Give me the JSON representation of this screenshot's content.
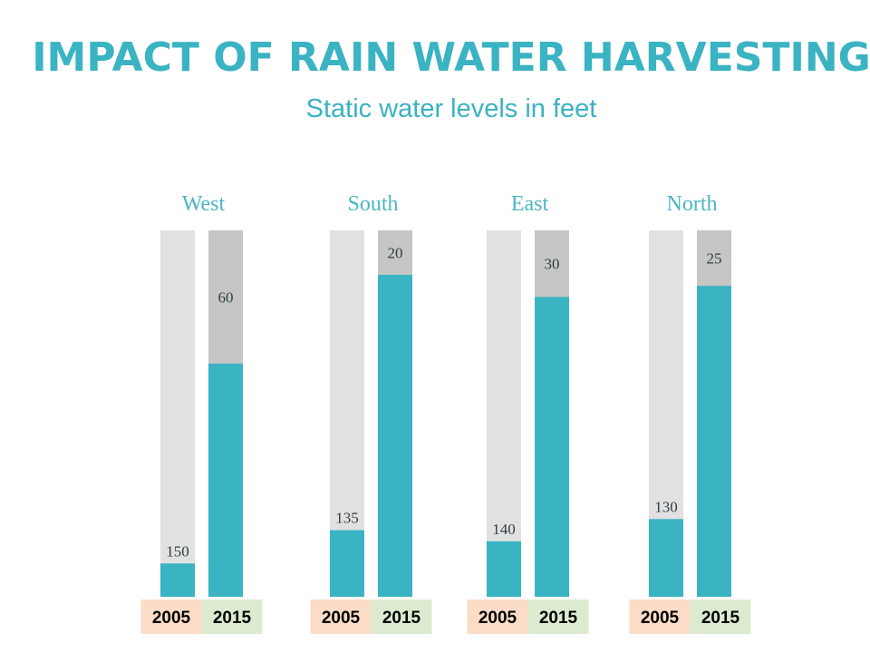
{
  "title": "IMPACT OF RAIN WATER HARVESTING",
  "subtitle": "Static water levels in feet",
  "colors": {
    "accent": "#3ab3c2",
    "bar_track": "#e1e1e1",
    "bar_track_2015": "#c6c6c6",
    "year_2005_bg": "#fbdcc6",
    "year_2015_bg": "#dcebcf"
  },
  "chart_data": {
    "type": "bar",
    "title": "IMPACT OF RAIN WATER HARVESTING",
    "subtitle": "Static water levels in feet",
    "ylabel": "",
    "xlabel": "",
    "ylim": [
      0,
      165
    ],
    "grid": false,
    "categories": [
      "West",
      "South",
      "East",
      "North"
    ],
    "series": [
      {
        "name": "2005",
        "values": [
          150,
          135,
          140,
          130
        ]
      },
      {
        "name": "2015",
        "values": [
          60,
          20,
          30,
          25
        ]
      }
    ]
  }
}
